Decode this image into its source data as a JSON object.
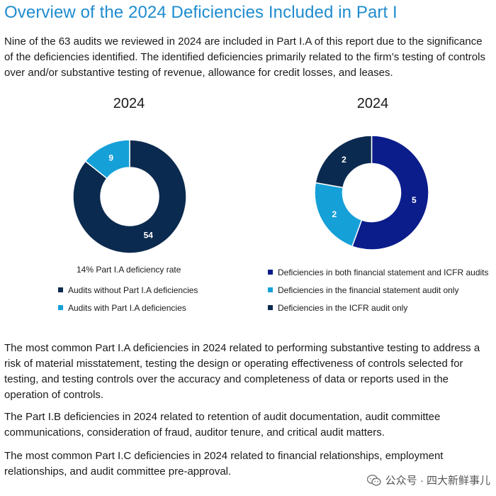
{
  "title": "Overview of the 2024 Deficiencies Included in Part I",
  "intro": "Nine of the 63 audits we reviewed in 2024 are included in Part I.A of this report due to the significance of the deficiencies identified. The identified deficiencies primarily related to the firm’s testing of controls over and/or substantive testing of revenue, allowance for credit losses, and leases.",
  "left_chart": {
    "year": "2024",
    "rate_label": "14% Part I.A deficiency rate",
    "legend": [
      "Audits without Part I.A deficiencies",
      "Audits with Part I.A deficiencies"
    ]
  },
  "right_chart": {
    "year": "2024",
    "legend": [
      "Deficiencies in both financial statement and ICFR audits",
      "Deficiencies in the financial statement audit only",
      "Deficiencies in the ICFR audit only"
    ]
  },
  "chart_data": [
    {
      "type": "pie",
      "title": "2024",
      "subtitle": "14% Part I.A deficiency rate",
      "categories": [
        "Audits without Part I.A deficiencies",
        "Audits with Part I.A deficiencies"
      ],
      "values": [
        54,
        9
      ],
      "colors": [
        "#0b2a4f",
        "#16a0d8"
      ],
      "legend": "bottom"
    },
    {
      "type": "pie",
      "title": "2024",
      "categories": [
        "Deficiencies in both financial statement and ICFR audits",
        "Deficiencies in the financial statement audit only",
        "Deficiencies in the ICFR audit only"
      ],
      "values": [
        5,
        2,
        2
      ],
      "colors": [
        "#0b1d8a",
        "#16a0d8",
        "#0b2a4f"
      ],
      "legend": "bottom"
    }
  ],
  "paragraphs": [
    "The most common Part I.A deficiencies in 2024 related to performing substantive testing to address a risk of material misstatement, testing the design or operating effectiveness of controls selected for testing, and testing controls over the accuracy and completeness of data or reports used in the operation of controls.",
    "The Part I.B deficiencies in 2024 related to retention of audit documentation, audit committee communications, consideration of fraud, auditor tenure, and critical audit matters.",
    "The most common Part I.C deficiencies in 2024 related to financial relationships, employment relationships, and audit committee pre-approval."
  ],
  "watermark": "公众号 · 四大新鲜事儿",
  "watermark_icon": "wechat-icon"
}
